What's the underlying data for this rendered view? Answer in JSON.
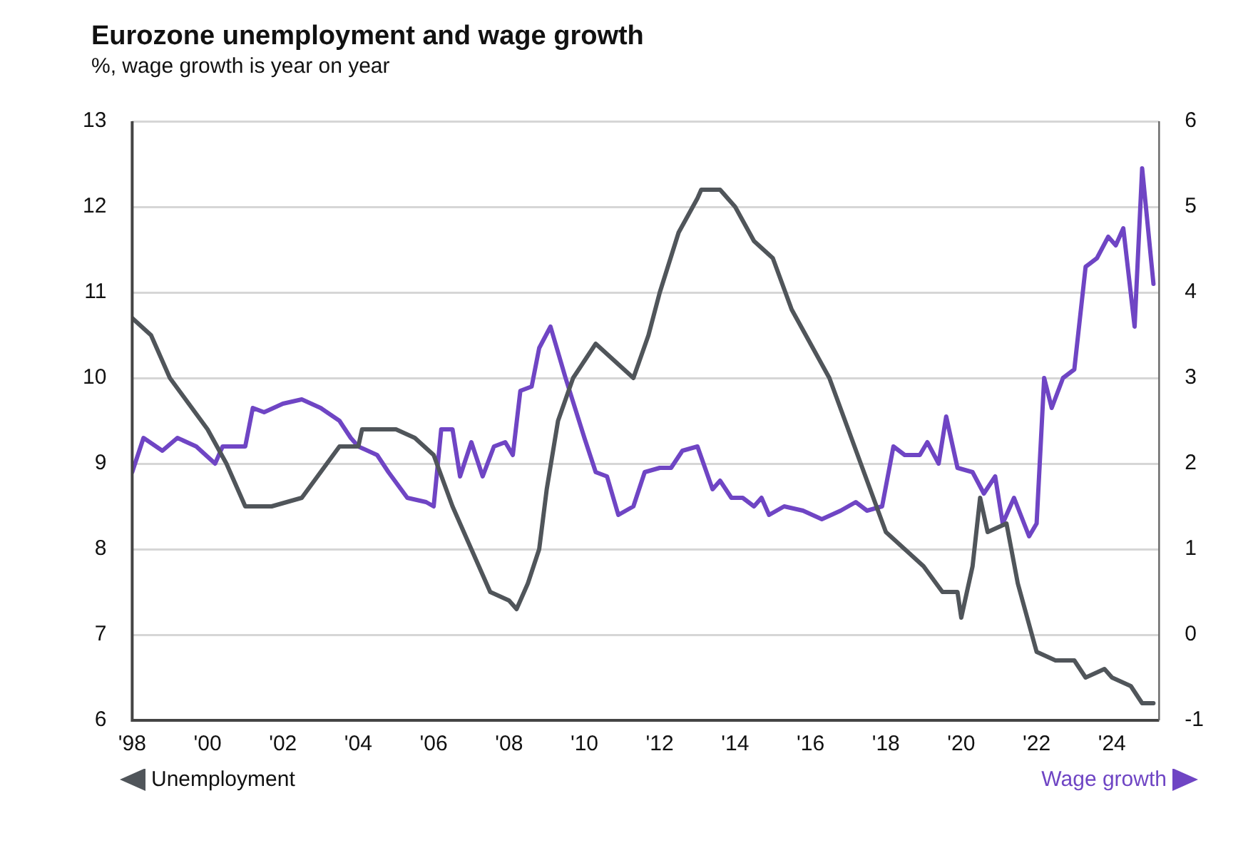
{
  "chart_data": {
    "type": "line",
    "title": "Eurozone unemployment and wage growth",
    "subtitle": "%, wage growth is year on year",
    "xlim": [
      1998,
      2025.25
    ],
    "xticks": [
      {
        "value": 1998,
        "label": "'98"
      },
      {
        "value": 2000,
        "label": "'00"
      },
      {
        "value": 2002,
        "label": "'02"
      },
      {
        "value": 2004,
        "label": "'04"
      },
      {
        "value": 2006,
        "label": "'06"
      },
      {
        "value": 2008,
        "label": "'08"
      },
      {
        "value": 2010,
        "label": "'10"
      },
      {
        "value": 2012,
        "label": "'12"
      },
      {
        "value": 2014,
        "label": "'14"
      },
      {
        "value": 2016,
        "label": "'16"
      },
      {
        "value": 2018,
        "label": "'18"
      },
      {
        "value": 2020,
        "label": "'20"
      },
      {
        "value": 2022,
        "label": "'22"
      },
      {
        "value": 2024,
        "label": "'24"
      }
    ],
    "ylim": [
      6,
      13
    ],
    "yticks": [
      6,
      7,
      8,
      9,
      10,
      11,
      12,
      13
    ],
    "y2lim": [
      -1,
      6
    ],
    "y2ticks": [
      -1,
      0,
      1,
      2,
      3,
      4,
      5,
      6
    ],
    "grid": "y",
    "legend": "bottom",
    "marker": "none",
    "line_style": "solid",
    "series": [
      {
        "name": "Unemployment",
        "color": "#50555a",
        "axis": "y",
        "x": [
          1998.0,
          1998.5,
          1999.0,
          1999.5,
          2000.0,
          2000.5,
          2001.0,
          2001.7,
          2002.5,
          2003.0,
          2003.5,
          2004.0,
          2004.1,
          2005.0,
          2005.5,
          2006.0,
          2006.5,
          2007.0,
          2007.5,
          2008.0,
          2008.2,
          2008.5,
          2008.8,
          2009.0,
          2009.3,
          2009.7,
          2010.0,
          2010.3,
          2010.8,
          2011.3,
          2011.7,
          2012.0,
          2012.5,
          2013.0,
          2013.1,
          2013.6,
          2014.0,
          2014.5,
          2015.0,
          2015.5,
          2016.0,
          2016.5,
          2017.0,
          2017.5,
          2018.0,
          2018.5,
          2019.0,
          2019.5,
          2019.9,
          2020.0,
          2020.3,
          2020.5,
          2020.7,
          2021.2,
          2021.5,
          2022.0,
          2022.5,
          2023.0,
          2023.3,
          2023.8,
          2024.0,
          2024.5,
          2024.8,
          2025.1
        ],
        "values": [
          10.7,
          10.5,
          10.0,
          9.7,
          9.4,
          9.0,
          8.5,
          8.5,
          8.6,
          8.9,
          9.2,
          9.2,
          9.4,
          9.4,
          9.3,
          9.1,
          8.5,
          8.0,
          7.5,
          7.4,
          7.3,
          7.6,
          8.0,
          8.7,
          9.5,
          10.0,
          10.2,
          10.4,
          10.2,
          10.0,
          10.5,
          11.0,
          11.7,
          12.1,
          12.2,
          12.2,
          12.0,
          11.6,
          11.4,
          10.8,
          10.4,
          10.0,
          9.4,
          8.8,
          8.2,
          8.0,
          7.8,
          7.5,
          7.5,
          7.2,
          7.8,
          8.6,
          8.2,
          8.3,
          7.6,
          6.8,
          6.7,
          6.7,
          6.5,
          6.6,
          6.5,
          6.4,
          6.2,
          6.2
        ]
      },
      {
        "name": "Wage growth",
        "color": "#6f45c4",
        "axis": "y2",
        "x": [
          1998.0,
          1998.3,
          1998.8,
          1999.2,
          1999.7,
          2000.2,
          2000.4,
          2001.0,
          2001.2,
          2001.5,
          2002.0,
          2002.5,
          2003.0,
          2003.5,
          2003.8,
          2004.0,
          2004.5,
          2004.8,
          2005.3,
          2005.8,
          2006.0,
          2006.2,
          2006.5,
          2006.7,
          2007.0,
          2007.3,
          2007.6,
          2007.9,
          2008.1,
          2008.3,
          2008.6,
          2008.8,
          2009.1,
          2009.5,
          2010.0,
          2010.3,
          2010.6,
          2010.9,
          2011.3,
          2011.6,
          2012.0,
          2012.3,
          2012.6,
          2013.0,
          2013.4,
          2013.6,
          2013.9,
          2014.2,
          2014.5,
          2014.7,
          2014.9,
          2015.3,
          2015.8,
          2016.3,
          2016.8,
          2017.2,
          2017.5,
          2017.9,
          2018.2,
          2018.5,
          2018.9,
          2019.1,
          2019.4,
          2019.6,
          2019.9,
          2020.3,
          2020.6,
          2020.9,
          2021.1,
          2021.4,
          2021.8,
          2022.0,
          2022.2,
          2022.4,
          2022.7,
          2023.0,
          2023.3,
          2023.6,
          2023.9,
          2024.1,
          2024.3,
          2024.6,
          2024.8,
          2025.1
        ],
        "values": [
          1.9,
          2.3,
          2.15,
          2.3,
          2.2,
          2.0,
          2.2,
          2.2,
          2.65,
          2.6,
          2.7,
          2.75,
          2.65,
          2.5,
          2.3,
          2.2,
          2.1,
          1.9,
          1.6,
          1.55,
          1.5,
          2.4,
          2.4,
          1.85,
          2.25,
          1.85,
          2.2,
          2.25,
          2.1,
          2.85,
          2.9,
          3.35,
          3.6,
          3.0,
          2.3,
          1.9,
          1.85,
          1.4,
          1.5,
          1.9,
          1.95,
          1.95,
          2.15,
          2.2,
          1.7,
          1.8,
          1.6,
          1.6,
          1.5,
          1.6,
          1.4,
          1.5,
          1.45,
          1.35,
          1.45,
          1.55,
          1.45,
          1.5,
          2.2,
          2.1,
          2.1,
          2.25,
          2.0,
          2.55,
          1.95,
          1.9,
          1.65,
          1.85,
          1.3,
          1.6,
          1.15,
          1.3,
          3.0,
          2.65,
          3.0,
          3.1,
          4.3,
          4.4,
          4.65,
          4.55,
          4.75,
          3.6,
          5.45,
          4.1
        ]
      }
    ]
  }
}
